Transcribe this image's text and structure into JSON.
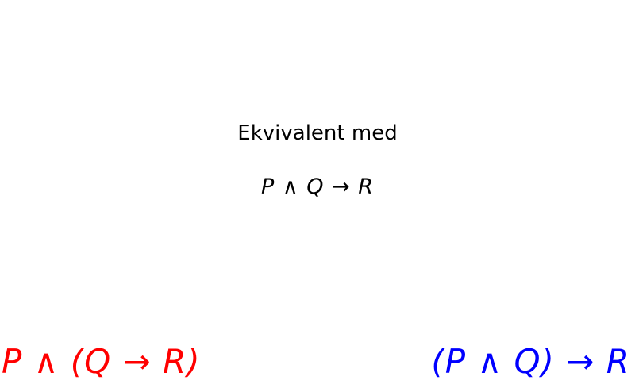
{
  "slide": {
    "heading": "Ekvivalent med",
    "formula": "P ∧ Q → R"
  },
  "alternatives": {
    "left": {
      "formula": "P ∧ (Q → R)",
      "color": "#ff0000"
    },
    "right": {
      "formula": "(P ∧ Q) → R",
      "color": "#0000ff"
    }
  }
}
